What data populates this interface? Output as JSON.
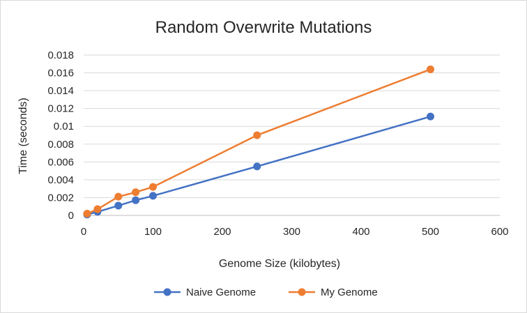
{
  "chart_data": {
    "type": "line",
    "title": "Random Overwrite Mutations",
    "xlabel": "Genome Size (kilobytes)",
    "ylabel": "Time (seconds)",
    "xlim": [
      0,
      600
    ],
    "ylim": [
      0,
      0.018
    ],
    "x_ticks": [
      "0",
      "100",
      "200",
      "300",
      "400",
      "500",
      "600"
    ],
    "x_tick_values": [
      0,
      100,
      200,
      300,
      400,
      500,
      600
    ],
    "y_ticks": [
      "0",
      "0.002",
      "0.004",
      "0.006",
      "0.008",
      "0.01",
      "0.012",
      "0.014",
      "0.016",
      "0.018"
    ],
    "y_tick_values": [
      0,
      0.002,
      0.004,
      0.006,
      0.008,
      0.01,
      0.012,
      0.014,
      0.016,
      0.018
    ],
    "grid": "horizontal",
    "legend_position": "bottom",
    "series": [
      {
        "name": "Naive Genome",
        "color": "#4472C4",
        "x": [
          5,
          20,
          50,
          75,
          100,
          250,
          500
        ],
        "y": [
          0.0001,
          0.0004,
          0.0011,
          0.0017,
          0.0022,
          0.0055,
          0.0111
        ]
      },
      {
        "name": "My Genome",
        "color": "#ED7D31",
        "x": [
          5,
          20,
          50,
          75,
          100,
          250,
          500
        ],
        "y": [
          0.0002,
          0.0007,
          0.0021,
          0.0026,
          0.0032,
          0.009,
          0.0164
        ]
      }
    ]
  }
}
